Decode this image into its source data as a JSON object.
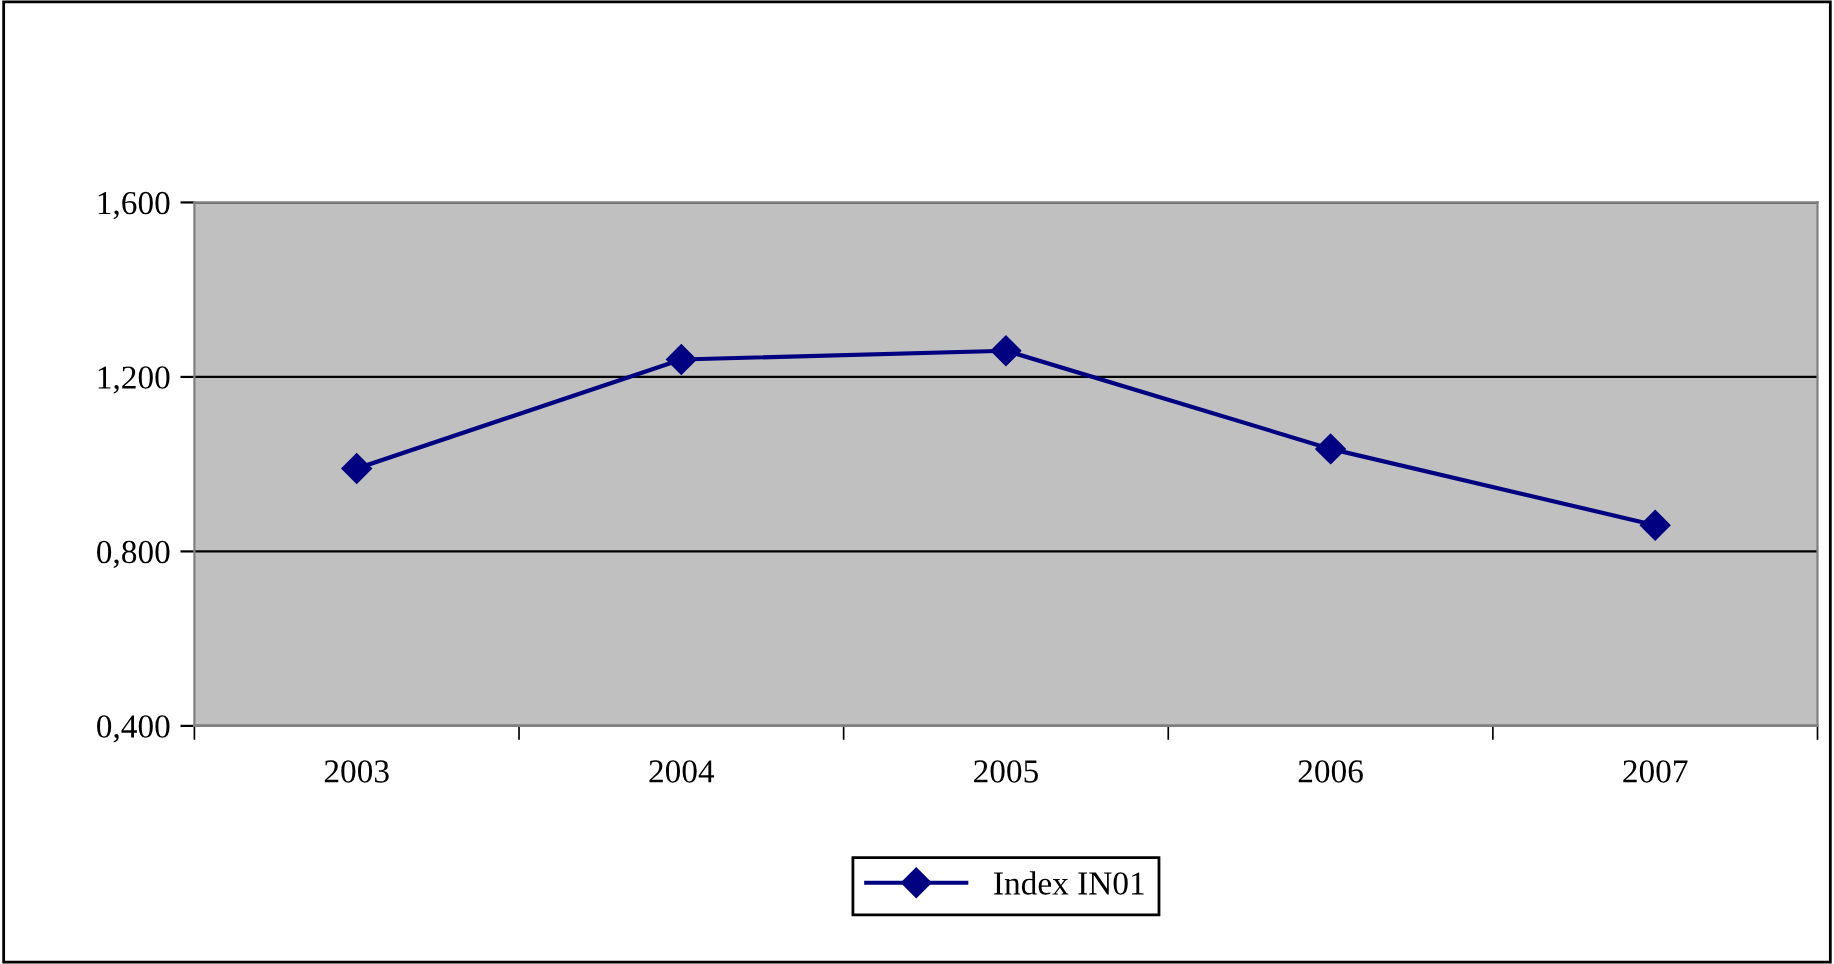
{
  "chart_data": {
    "type": "line",
    "categories": [
      "2003",
      "2004",
      "2005",
      "2006",
      "2007"
    ],
    "series": [
      {
        "name": "Index IN01",
        "color": "#000080",
        "values": [
          0.99,
          1.24,
          1.26,
          1.035,
          0.86
        ]
      }
    ],
    "ylim": [
      0.4,
      1.6
    ],
    "yticks": [
      {
        "value": 0.4,
        "label": "0,400"
      },
      {
        "value": 0.8,
        "label": "0,800"
      },
      {
        "value": 1.2,
        "label": "1,200"
      },
      {
        "value": 1.6,
        "label": "1,600"
      }
    ],
    "grid": "y",
    "legend": "bottom",
    "marker": "diamond",
    "line_style": "solid"
  }
}
